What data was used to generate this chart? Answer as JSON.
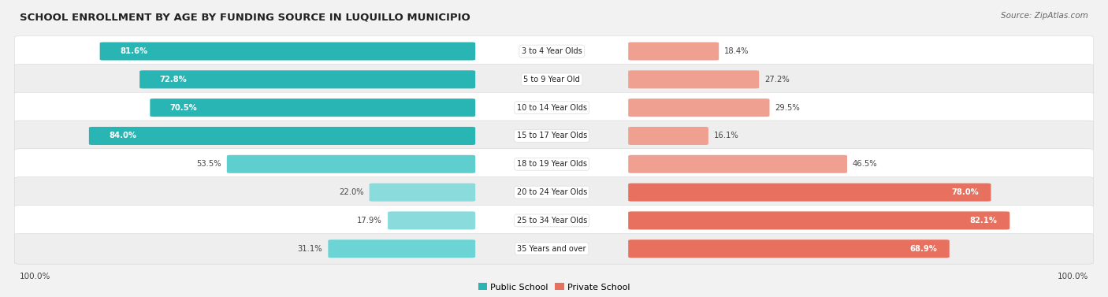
{
  "title": "SCHOOL ENROLLMENT BY AGE BY FUNDING SOURCE IN LUQUILLO MUNICIPIO",
  "source": "Source: ZipAtlas.com",
  "categories": [
    "3 to 4 Year Olds",
    "5 to 9 Year Old",
    "10 to 14 Year Olds",
    "15 to 17 Year Olds",
    "18 to 19 Year Olds",
    "20 to 24 Year Olds",
    "25 to 34 Year Olds",
    "35 Years and over"
  ],
  "public_values": [
    81.6,
    72.8,
    70.5,
    84.0,
    53.5,
    22.0,
    17.9,
    31.1
  ],
  "private_values": [
    18.4,
    27.2,
    29.5,
    16.1,
    46.5,
    78.0,
    82.1,
    68.9
  ],
  "public_colors": [
    "#2ab5b5",
    "#2ab5b5",
    "#2ab5b5",
    "#2ab5b5",
    "#5ecece",
    "#8adcdc",
    "#8adcdc",
    "#6cd4d4"
  ],
  "private_colors": [
    "#f0a090",
    "#f0a090",
    "#f0a090",
    "#f0a090",
    "#f0a090",
    "#e8705e",
    "#e8705e",
    "#e8705e"
  ],
  "background_color": "#f2f2f2",
  "row_colors": [
    "#ffffff",
    "#eeeeee"
  ],
  "legend_public": "Public School",
  "legend_private": "Private School",
  "axis_label_left": "100.0%",
  "axis_label_right": "100.0%",
  "pub_label_inside": [
    true,
    true,
    true,
    true,
    false,
    false,
    false,
    false
  ],
  "priv_label_inside": [
    false,
    false,
    false,
    false,
    false,
    true,
    true,
    true
  ]
}
